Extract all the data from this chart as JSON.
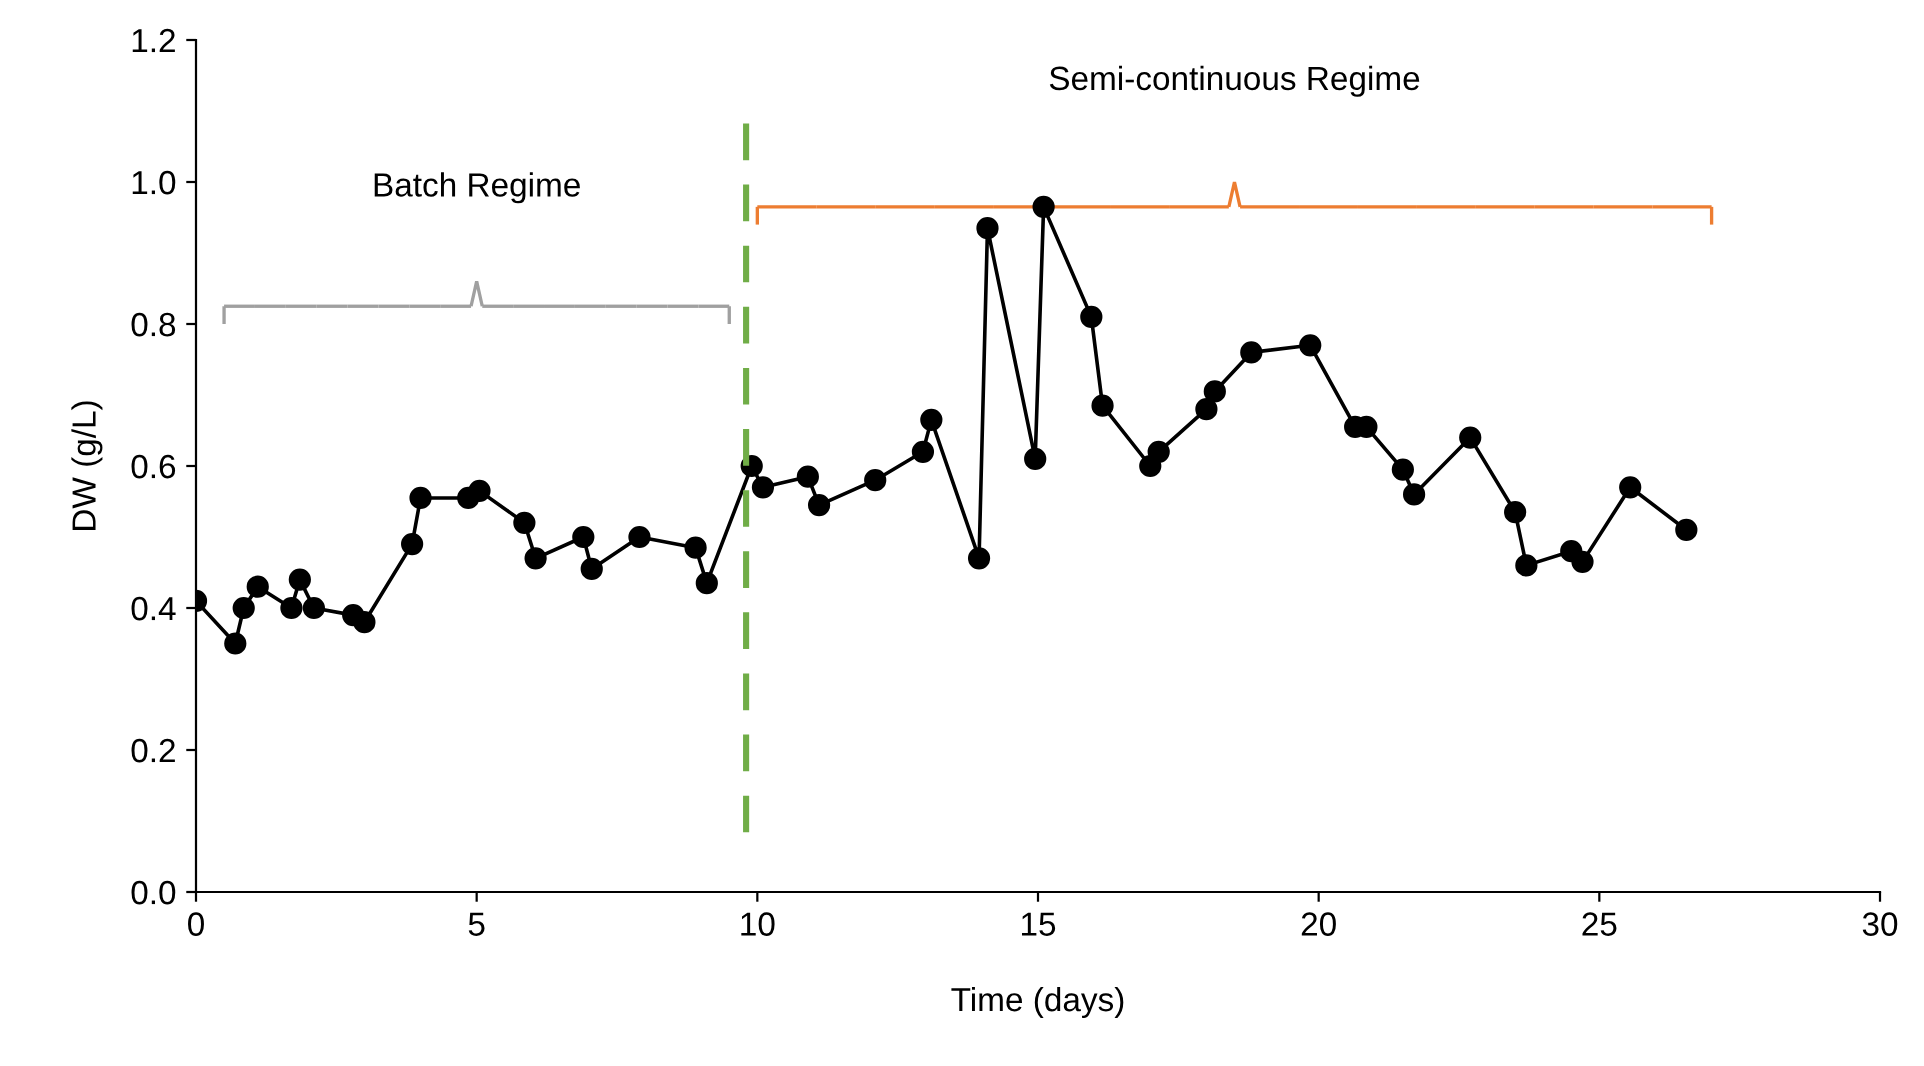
{
  "chart_data": {
    "type": "line",
    "xlabel": "Time (days)",
    "ylabel": "DW (g/L)",
    "xlim": [
      0,
      30
    ],
    "xticks": [
      0,
      5,
      10,
      15,
      20,
      25,
      30
    ],
    "ylim": [
      0,
      1.2
    ],
    "yticks": [
      {
        "value": 0,
        "label": "0.0"
      },
      {
        "value": 0.2,
        "label": "0.2"
      },
      {
        "value": 0.4,
        "label": "0.4"
      },
      {
        "value": 0.6,
        "label": "0.6"
      },
      {
        "value": 0.8,
        "label": "0.8"
      },
      {
        "value": 1.0,
        "label": "1.0"
      },
      {
        "value": 1.2,
        "label": "1.2"
      }
    ],
    "grid": false,
    "marker": "circle",
    "line_style": "solid",
    "series": [
      {
        "color": "#000000",
        "x": [
          0.0,
          0.7,
          0.85,
          1.1,
          1.7,
          1.85,
          2.1,
          2.8,
          3.0,
          3.85,
          4.0,
          4.85,
          5.05,
          5.85,
          6.05,
          6.9,
          7.05,
          7.9,
          8.9,
          9.1,
          9.9,
          10.1,
          10.9,
          11.1,
          12.1,
          12.95,
          13.1,
          13.95,
          14.1,
          14.95,
          15.1,
          15.95,
          16.15,
          17.0,
          17.15,
          18.0,
          18.15,
          18.8,
          19.85,
          20.65,
          20.85,
          21.5,
          21.7,
          22.7,
          23.5,
          23.7,
          24.5,
          24.7,
          25.55,
          26.55
        ],
        "values": [
          0.41,
          0.35,
          0.4,
          0.43,
          0.4,
          0.44,
          0.4,
          0.39,
          0.38,
          0.49,
          0.555,
          0.555,
          0.565,
          0.52,
          0.47,
          0.5,
          0.455,
          0.5,
          0.485,
          0.435,
          0.6,
          0.57,
          0.585,
          0.545,
          0.58,
          0.62,
          0.665,
          0.47,
          0.935,
          0.61,
          0.965,
          0.81,
          0.685,
          0.6,
          0.62,
          0.68,
          0.705,
          0.76,
          0.77,
          0.655,
          0.655,
          0.595,
          0.56,
          0.64,
          0.535,
          0.46,
          0.48,
          0.465,
          0.57,
          0.51
        ]
      }
    ],
    "ref_lines": [
      {
        "axis": "x",
        "value": 9.8,
        "color": "#70ad47",
        "line_style": "dashed"
      }
    ],
    "annotations": [
      "Batch Regime",
      "Semi-continuous Regime"
    ]
  }
}
